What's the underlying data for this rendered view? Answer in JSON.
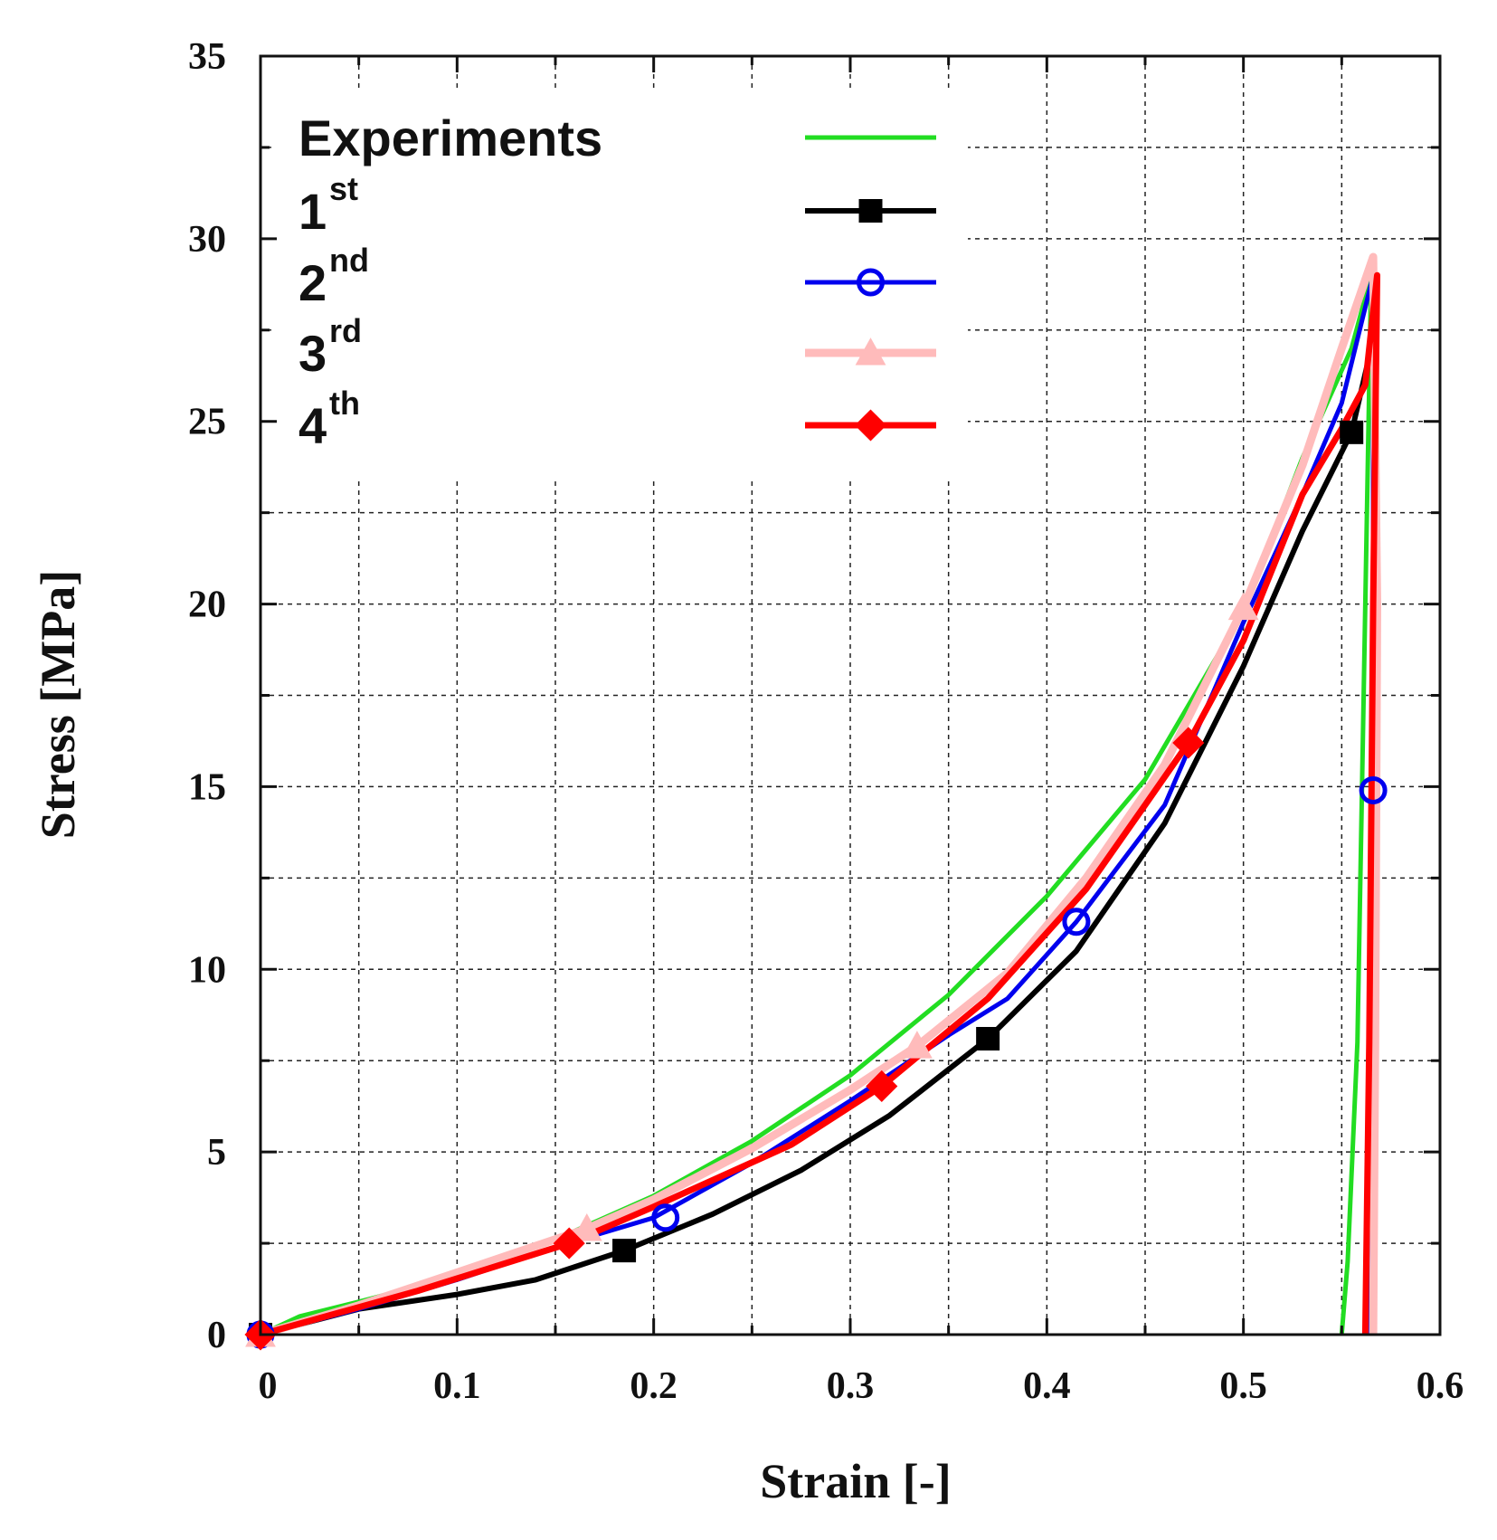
{
  "chart_data": {
    "type": "line",
    "title": "",
    "xlabel": "Strain [-]",
    "ylabel": "Stress  [MPa]",
    "xlim": [
      0,
      0.6
    ],
    "ylim": [
      0,
      35
    ],
    "xticks": [
      0,
      0.1,
      0.2,
      0.3,
      0.4,
      0.5,
      0.6
    ],
    "xtick_labels": [
      "0",
      "0.1",
      "0.2",
      "0.3",
      "0.4",
      "0.5",
      "0.6"
    ],
    "yticks": [
      0,
      5,
      10,
      15,
      20,
      25,
      30,
      35
    ],
    "ytick_labels": [
      "0",
      "5",
      "10",
      "15",
      "20",
      "25",
      "30",
      "35"
    ],
    "grid": true,
    "legend_position": "top-left",
    "series": [
      {
        "name": "Experiments",
        "legend_label": "Experiments",
        "legend_sup": "",
        "color": "#22dd22",
        "marker": "none",
        "x": [
          0,
          0.02,
          0.05,
          0.1,
          0.15,
          0.2,
          0.25,
          0.3,
          0.35,
          0.4,
          0.45,
          0.5,
          0.53,
          0.555,
          0.565,
          0.562,
          0.558,
          0.553,
          0.55
        ],
        "y": [
          0,
          0.5,
          0.9,
          1.6,
          2.6,
          3.8,
          5.3,
          7.1,
          9.3,
          12.0,
          15.2,
          19.8,
          24.0,
          27.0,
          29.0,
          20.0,
          8.0,
          2.0,
          0
        ]
      },
      {
        "name": "1st",
        "legend_label": "1",
        "legend_sup": "st",
        "color": "#000000",
        "marker": "square",
        "x": [
          0,
          0.05,
          0.1,
          0.14,
          0.185,
          0.23,
          0.275,
          0.32,
          0.37,
          0.415,
          0.46,
          0.5,
          0.53,
          0.555,
          0.565,
          0.567,
          0.566,
          0.564,
          0.562
        ],
        "y": [
          0,
          0.7,
          1.1,
          1.5,
          2.3,
          3.3,
          4.5,
          6.0,
          8.1,
          10.5,
          14.0,
          18.3,
          22.0,
          24.7,
          27.0,
          28.0,
          15.0,
          5.0,
          0
        ],
        "marker_x": [
          0,
          0.185,
          0.37,
          0.555
        ],
        "marker_y": [
          0,
          2.3,
          8.1,
          24.7
        ]
      },
      {
        "name": "2nd",
        "legend_label": "2",
        "legend_sup": "nd",
        "color": "#0000ee",
        "marker": "circle-open",
        "x": [
          0,
          0.05,
          0.1,
          0.15,
          0.2,
          0.25,
          0.3,
          0.35,
          0.38,
          0.415,
          0.46,
          0.5,
          0.53,
          0.55,
          0.566,
          0.566,
          0.565,
          0.564
        ],
        "y": [
          0,
          0.7,
          1.5,
          2.4,
          3.2,
          4.7,
          6.4,
          8.2,
          9.2,
          11.3,
          14.5,
          19.5,
          23.0,
          25.5,
          29.0,
          14.9,
          5.0,
          0
        ],
        "marker_x": [
          0,
          0.206,
          0.415,
          0.566
        ],
        "marker_y": [
          0,
          3.2,
          11.3,
          14.9
        ]
      },
      {
        "name": "3rd",
        "legend_label": "3",
        "legend_sup": "rd",
        "color": "#ffbbbb",
        "marker": "triangle",
        "x": [
          0,
          0.05,
          0.1,
          0.166,
          0.2,
          0.25,
          0.3,
          0.334,
          0.38,
          0.42,
          0.46,
          0.5,
          0.53,
          0.55,
          0.566,
          0.568,
          0.567,
          0.566
        ],
        "y": [
          0,
          0.8,
          1.7,
          2.9,
          3.7,
          5.1,
          6.7,
          7.9,
          9.9,
          12.5,
          15.6,
          19.9,
          23.8,
          27.0,
          29.5,
          20.0,
          8.0,
          0
        ],
        "marker_x": [
          0,
          0.166,
          0.334,
          0.5
        ],
        "marker_y": [
          0,
          2.9,
          7.9,
          19.9
        ]
      },
      {
        "name": "4th",
        "legend_label": "4",
        "legend_sup": "th",
        "color": "#ff0000",
        "marker": "diamond",
        "x": [
          0,
          0.04,
          0.08,
          0.157,
          0.2,
          0.27,
          0.316,
          0.37,
          0.42,
          0.45,
          0.472,
          0.5,
          0.53,
          0.55,
          0.562,
          0.568,
          0.566,
          0.564,
          0.562
        ],
        "y": [
          0,
          0.6,
          1.2,
          2.5,
          3.5,
          5.2,
          6.8,
          9.2,
          12.2,
          14.5,
          16.2,
          19.0,
          23.0,
          24.8,
          26.0,
          29.0,
          20.0,
          8.0,
          0
        ],
        "marker_x": [
          0,
          0.157,
          0.316,
          0.472
        ],
        "marker_y": [
          0,
          2.5,
          6.8,
          16.2
        ]
      }
    ]
  }
}
